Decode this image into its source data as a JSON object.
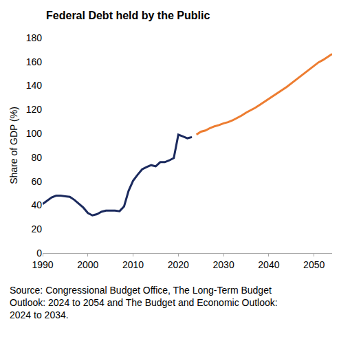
{
  "chart_data": {
    "type": "line",
    "title": "Federal Debt held by the Public",
    "y_label": "Share of GDP (%)",
    "source": [
      "Source: Congressional Budget Office, The Long-Term Budget",
      "Outlook: 2024 to 2054 and The Budget and Economic Outlook:",
      "2024 to 2034."
    ],
    "series": [
      {
        "color": "#1b2a5e",
        "x": [
          1990,
          1991,
          1992,
          1993,
          1994,
          1995,
          1996,
          1997,
          1998,
          1999,
          2000,
          2001,
          2002,
          2003,
          2004,
          2005,
          2006,
          2007,
          2008,
          2009,
          2010,
          2011,
          2012,
          2013,
          2014,
          2015,
          2016,
          2017,
          2018,
          2019,
          2020,
          2021,
          2022,
          2023
        ],
        "values": [
          41,
          44,
          46.5,
          48,
          48,
          47.5,
          47,
          44.5,
          41.5,
          38,
          33.5,
          31.5,
          32.5,
          34.5,
          35.5,
          35.5,
          35.5,
          35,
          39,
          52,
          60.5,
          65.5,
          70,
          72,
          73.5,
          72.5,
          76,
          76,
          77.5,
          79.5,
          99,
          97.5,
          96,
          97
        ]
      },
      {
        "color": "#ed7d31",
        "x": [
          2024,
          2025,
          2026,
          2027,
          2028,
          2029,
          2030,
          2031,
          2032,
          2033,
          2034,
          2035,
          2036,
          2037,
          2038,
          2039,
          2040,
          2041,
          2042,
          2043,
          2044,
          2045,
          2046,
          2047,
          2048,
          2049,
          2050,
          2051,
          2052,
          2053,
          2054
        ],
        "values": [
          99,
          101.5,
          102.5,
          104.5,
          106,
          107,
          108.5,
          109.5,
          111,
          113,
          115,
          117.5,
          119.5,
          121.5,
          124,
          126.5,
          128.5,
          131,
          133.5,
          136,
          139,
          142,
          145,
          148,
          151,
          154,
          157,
          159.5,
          161.5,
          164,
          166.5
        ]
      }
    ],
    "xlim": [
      1990,
      2054
    ],
    "xticks": [
      1990,
      2000,
      2010,
      2020,
      2030,
      2040,
      2050
    ],
    "ylim": [
      0,
      180
    ],
    "yticks": [
      0,
      20,
      40,
      60,
      80,
      100,
      120,
      140,
      160,
      180
    ],
    "grid": false
  }
}
